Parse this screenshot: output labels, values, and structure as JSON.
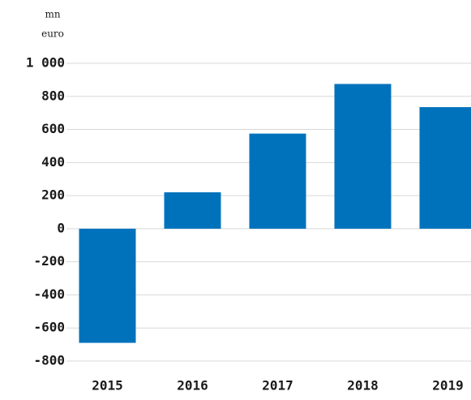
{
  "chart_data": {
    "type": "bar",
    "ylabel": [
      "mn",
      "euro"
    ],
    "categories": [
      "2015",
      "2016",
      "2017",
      "2018",
      "2019"
    ],
    "values": [
      -690,
      220,
      575,
      875,
      735
    ],
    "color": "#0072bc",
    "ylim": [
      -800,
      1000
    ],
    "yticks": [
      {
        "value": 1000,
        "label": "1 000"
      },
      800,
      600,
      400,
      200,
      0,
      -200,
      -400,
      -600,
      -800
    ],
    "grid": true
  }
}
